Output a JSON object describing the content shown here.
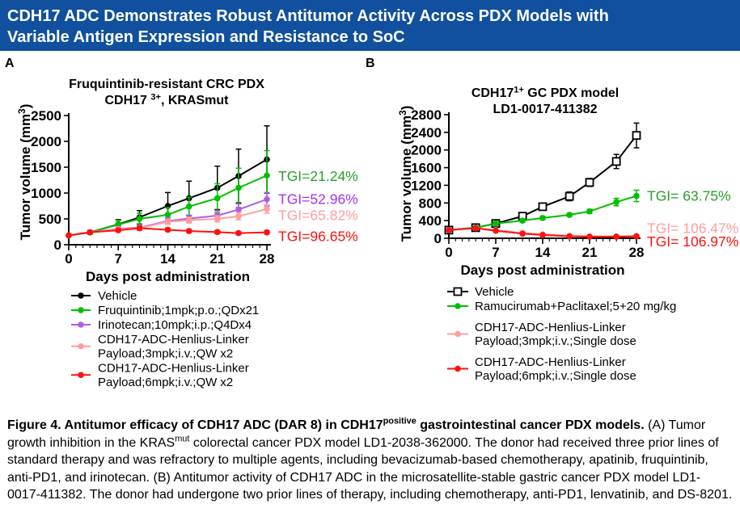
{
  "banner": {
    "title": "CDH17 ADC Demonstrates Robust Antitumor Activity Across PDX Models with Variable Antigen Expression and Resistance to SoC",
    "bg_color": "#10509E",
    "text_color": "#FFFFFF"
  },
  "chart_data": [
    {
      "panel_label": "A",
      "type": "line",
      "title_lines": [
        [
          {
            "t": "Fruquintinib-resistant CRC PDX"
          }
        ],
        [
          {
            "t": "CDH17 "
          },
          {
            "t": "3+",
            "sup": true
          },
          {
            "t": ", KRASmut"
          }
        ]
      ],
      "xlabel": "Days post administration",
      "ylabel_segments": [
        {
          "t": "Tumor volume (mm"
        },
        {
          "t": "3",
          "sup": true
        },
        {
          "t": ")"
        }
      ],
      "xlim": [
        0,
        28
      ],
      "xticks": [
        0,
        7,
        14,
        21,
        28
      ],
      "minor_x_step": 1,
      "ylim": [
        0,
        2500
      ],
      "yticks": [
        0,
        500,
        1000,
        1500,
        2000,
        2500
      ],
      "x": [
        0,
        3,
        7,
        10,
        14,
        17,
        21,
        24,
        28
      ],
      "series": [
        {
          "name": "Vehicle",
          "legend_lines": [
            "Vehicle"
          ],
          "color": "#000000",
          "marker": "circle",
          "y": [
            180,
            240,
            395,
            530,
            750,
            900,
            1100,
            1330,
            1650
          ],
          "err": [
            25,
            35,
            90,
            130,
            260,
            330,
            420,
            520,
            650
          ]
        },
        {
          "name": "Fruquintinib;1mpk;p.o.;QDx21",
          "legend_lines": [
            "Fruquintinib;1mpk;p.o.;QDx21"
          ],
          "color": "#00BE00",
          "marker": "circle",
          "y": [
            180,
            240,
            390,
            500,
            580,
            740,
            900,
            1100,
            1340
          ],
          "err": [
            25,
            35,
            80,
            110,
            140,
            180,
            280,
            380,
            480
          ]
        },
        {
          "name": "Irinotecan;10mpk;i.p.;Q4Dx4",
          "legend_lines": [
            "Irinotecan;10mpk;i.p.;Q4Dx4"
          ],
          "color": "#B05CE8",
          "marker": "circle",
          "y": [
            180,
            240,
            310,
            330,
            460,
            505,
            565,
            680,
            880
          ],
          "err": [
            20,
            30,
            40,
            45,
            60,
            70,
            90,
            110,
            130
          ]
        },
        {
          "name": "CDH17-ADC-Henlius-Linker Payload;3mpk;i.v.;QW x2",
          "legend_lines": [
            "CDH17-ADC-Henlius-Linker",
            "Payload;3mpk;i.v.;QW x2"
          ],
          "color": "#FF9E9E",
          "marker": "circle",
          "y": [
            180,
            240,
            300,
            320,
            445,
            475,
            500,
            550,
            690
          ],
          "err": [
            20,
            28,
            35,
            40,
            50,
            55,
            60,
            70,
            80
          ]
        },
        {
          "name": "CDH17-ADC-Henlius-Linker Payload;6mpk;i.v.;QW x2",
          "legend_lines": [
            "CDH17-ADC-Henlius-Linker",
            "Payload;6mpk;i.v.;QW x2"
          ],
          "color": "#FF1010",
          "marker": "circle",
          "y": [
            180,
            240,
            280,
            320,
            290,
            265,
            245,
            225,
            240
          ],
          "err": [
            18,
            25,
            30,
            35,
            30,
            30,
            30,
            30,
            35
          ]
        }
      ],
      "tgi_labels": [
        {
          "text": "TGI=21.24%",
          "color": "#28A028",
          "y": 1330
        },
        {
          "text": "TGI=52.96%",
          "color": "#A431F0",
          "y": 880
        },
        {
          "text": "TGI=65.82%",
          "color": "#FF9E9E",
          "y": 570
        },
        {
          "text": "TGI=96.65%",
          "color": "#FF1010",
          "y": 165
        }
      ]
    },
    {
      "panel_label": "B",
      "type": "line",
      "title_lines": [
        [
          {
            "t": "CDH17"
          },
          {
            "t": "1+",
            "sup": true
          },
          {
            "t": " GC PDX model"
          }
        ],
        [
          {
            "t": "LD1-0017-411382"
          }
        ]
      ],
      "xlabel": "Days post administration",
      "ylabel_segments": [
        {
          "t": "Tumor volume (mm"
        },
        {
          "t": "3",
          "sup": true
        },
        {
          "t": ")"
        }
      ],
      "xlim": [
        0,
        28
      ],
      "xticks": [
        0,
        7,
        14,
        21,
        28
      ],
      "minor_x_step": 1,
      "ylim": [
        0,
        2800
      ],
      "yticks": [
        0,
        400,
        800,
        1200,
        1600,
        2000,
        2400,
        2800
      ],
      "x": [
        0,
        4,
        7,
        11,
        14,
        18,
        21,
        25,
        28
      ],
      "series": [
        {
          "name": "Vehicle",
          "legend_lines": [
            "Vehicle"
          ],
          "color": "#000000",
          "marker": "square-open",
          "y": [
            185,
            240,
            335,
            500,
            715,
            950,
            1265,
            1740,
            2330
          ],
          "err": [
            20,
            25,
            40,
            55,
            75,
            100,
            90,
            160,
            280
          ]
        },
        {
          "name": "Ramucirumab+Paclitaxel;5+20 mg/kg",
          "legend_lines": [
            "Ramucirumab+Paclitaxel;5+20 mg/kg"
          ],
          "color": "#00BE00",
          "marker": "circle",
          "y": [
            185,
            240,
            335,
            400,
            460,
            530,
            610,
            820,
            960
          ],
          "err": [
            18,
            22,
            30,
            35,
            40,
            35,
            45,
            85,
            130
          ]
        },
        {
          "name": "CDH17-ADC-Henlius-Linker Payload;3mpk;i.v.;Single dose",
          "legend_lines": [
            "CDH17-ADC-Henlius-Linker",
            "Payload;3mpk;i.v.;Single dose"
          ],
          "color": "#FF9E9E",
          "marker": "circle",
          "y": [
            185,
            230,
            185,
            120,
            90,
            55,
            45,
            45,
            55
          ],
          "err": [
            15,
            18,
            18,
            14,
            12,
            10,
            10,
            10,
            14
          ]
        },
        {
          "name": "CDH17-ADC-Henlius-Linker Payload;6mpk;i.v.;Single dose",
          "legend_lines": [
            "CDH17-ADC-Henlius-Linker",
            "Payload;6mpk;i.v.;Single dose"
          ],
          "color": "#FF1010",
          "marker": "circle",
          "y": [
            185,
            230,
            170,
            105,
            75,
            45,
            35,
            35,
            42
          ],
          "err": [
            14,
            16,
            16,
            12,
            10,
            8,
            8,
            8,
            10
          ]
        }
      ],
      "tgi_labels": [
        {
          "text": "TGI= 63.75%",
          "color": "#28A028",
          "y": 960
        },
        {
          "text": "TGI= 106.47%",
          "color": "#FF9E9E",
          "y": 230
        },
        {
          "text": "TGI= 106.97%",
          "color": "#FF1010",
          "y": -70
        }
      ]
    }
  ],
  "caption": {
    "segments": [
      {
        "t": "Figure 4. Antitumor efficacy of CDH17 ADC (DAR 8) in CDH17",
        "b": true
      },
      {
        "t": "positive",
        "b": true,
        "sup": true
      },
      {
        "t": " gastrointestinal cancer PDX models.",
        "b": true
      },
      {
        "t": " (A) Tumor growth inhibition in the KRAS"
      },
      {
        "t": "mut",
        "sup": true
      },
      {
        "t": " colorectal cancer PDX model LD1-2038-362000. The donor had received three prior lines of standard therapy and was refractory to multiple agents, including bevacizumab-based chemotherapy, apatinib, fruquintinib, anti-PD1, and irinotecan. (B) Antitumor activity of CDH17 ADC in the microsatellite-stable gastric cancer PDX model LD1-0017-411382. The donor had undergone two prior lines of therapy, including chemotherapy, anti-PD1, lenvatinib, and DS-8201."
      }
    ]
  }
}
